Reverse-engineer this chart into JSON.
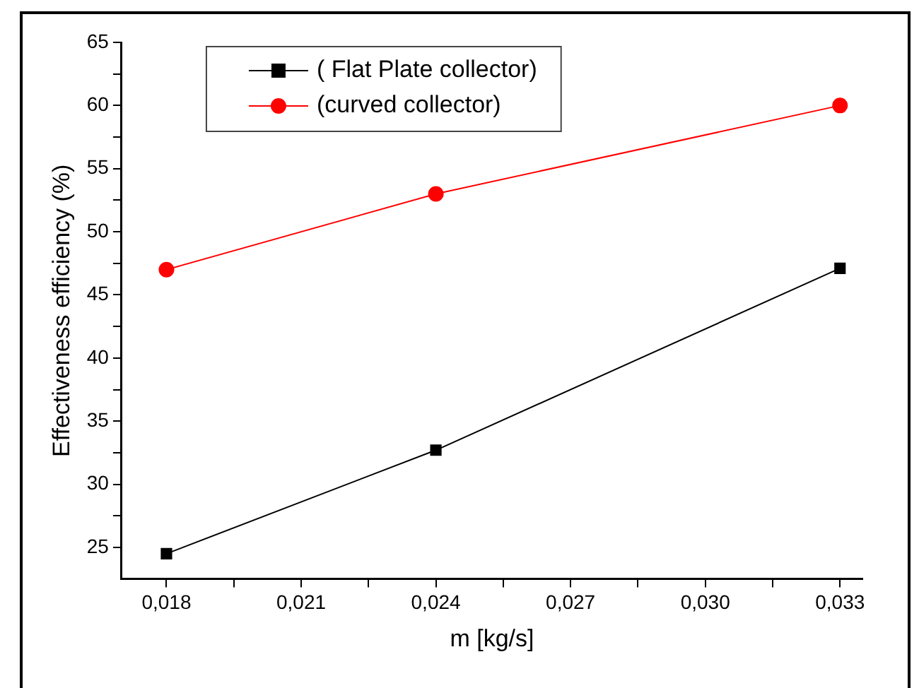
{
  "chart_data": {
    "type": "line",
    "xlabel": "m [kg/s]",
    "ylabel": "Effectiveness efficiency (%)",
    "x": [
      0.018,
      0.024,
      0.033
    ],
    "series": [
      {
        "name": "( Flat Plate collector)",
        "color": "#000000",
        "marker": "square",
        "values": [
          24.5,
          32.7,
          47.1
        ]
      },
      {
        "name": "(curved collector)",
        "color": "#ff0000",
        "marker": "circle",
        "values": [
          47,
          53,
          60
        ]
      }
    ],
    "xlim": [
      0.017,
      0.0335
    ],
    "xticks": [
      {
        "value": 0.018,
        "label": "0,018"
      },
      {
        "value": 0.0195,
        "label": null
      },
      {
        "value": 0.021,
        "label": "0,021"
      },
      {
        "value": 0.0225,
        "label": null
      },
      {
        "value": 0.024,
        "label": "0,024"
      },
      {
        "value": 0.0255,
        "label": null
      },
      {
        "value": 0.027,
        "label": "0,027"
      },
      {
        "value": 0.0285,
        "label": null
      },
      {
        "value": 0.03,
        "label": "0,030"
      },
      {
        "value": 0.0315,
        "label": null
      },
      {
        "value": 0.033,
        "label": "0,033"
      }
    ],
    "ylim": [
      22.5,
      65
    ],
    "yticks": [
      25,
      {
        "value": 27.5,
        "label": null
      },
      30,
      {
        "value": 32.5,
        "label": null
      },
      35,
      {
        "value": 37.5,
        "label": null
      },
      40,
      {
        "value": 42.5,
        "label": null
      },
      45,
      {
        "value": 47.5,
        "label": null
      },
      50,
      {
        "value": 52.5,
        "label": null
      },
      55,
      {
        "value": 57.5,
        "label": null
      },
      60,
      {
        "value": 62.5,
        "label": null
      },
      65
    ],
    "grid": false,
    "legend": "top left",
    "line_style": "solid"
  }
}
